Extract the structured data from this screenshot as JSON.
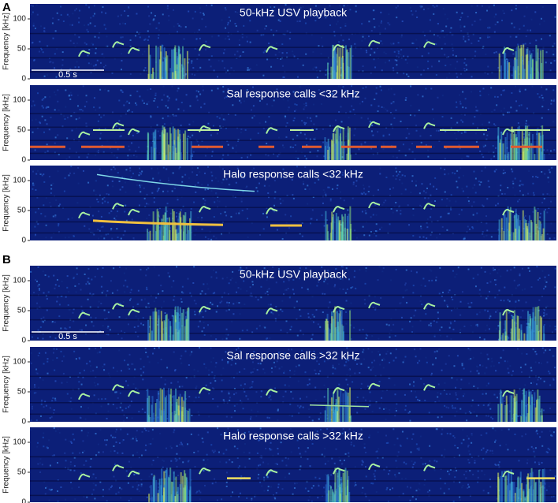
{
  "groups": [
    {
      "letter": "A",
      "panels": [
        {
          "title": "50-kHz USV playback",
          "scale_bar": "0.5 s"
        },
        {
          "title": "Sal response calls <32 kHz"
        },
        {
          "title": "Halo response calls <32 kHz"
        }
      ]
    },
    {
      "letter": "B",
      "panels": [
        {
          "title": "50-kHz USV playback",
          "scale_bar": "0.5 s"
        },
        {
          "title": "Sal response calls >32 kHz"
        },
        {
          "title": "Halo response calls >32 kHz"
        }
      ]
    }
  ],
  "y_axis": {
    "label": "Frequency [kHz]",
    "ylim": [
      0,
      125
    ],
    "yticks": [
      0,
      50,
      100
    ]
  }
}
